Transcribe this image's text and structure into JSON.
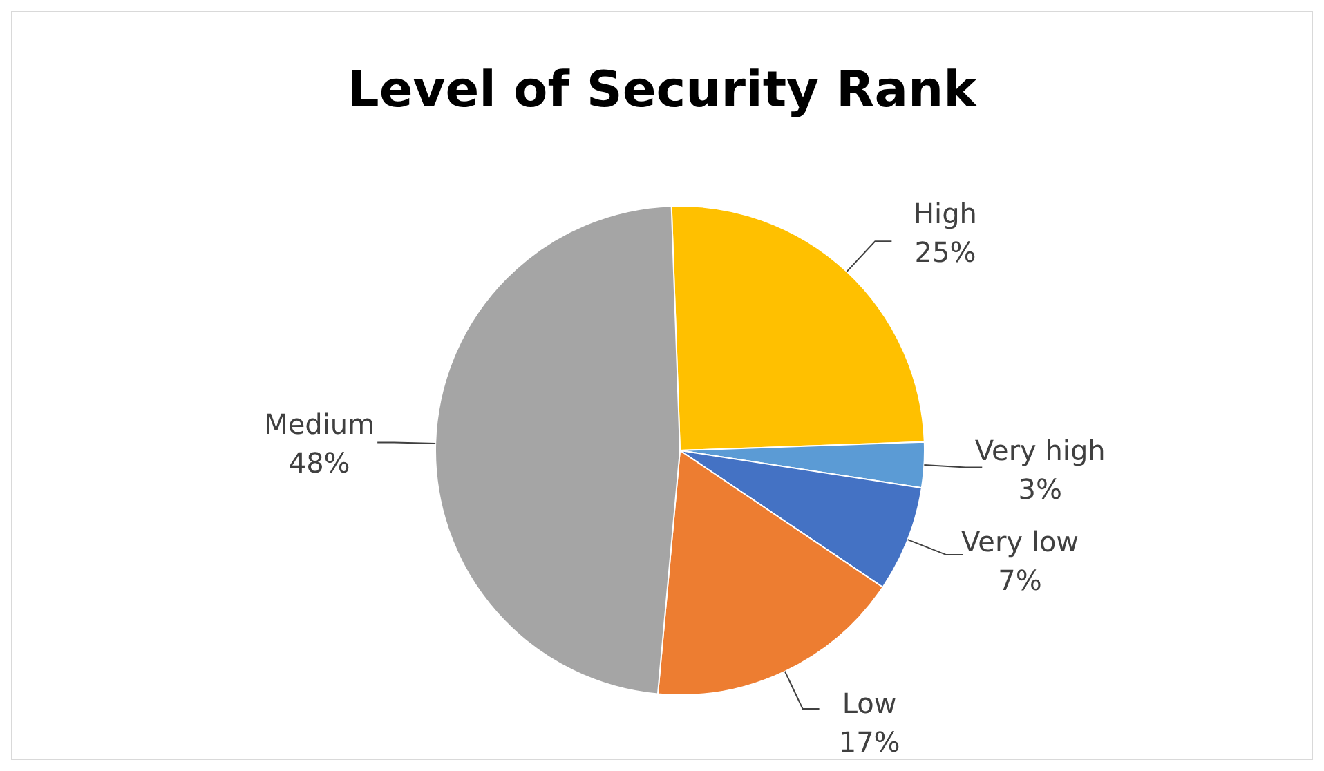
{
  "chart_data": {
    "type": "pie",
    "title": "Level of Security Rank",
    "categories": [
      "High",
      "Very high",
      "Very low",
      "Low",
      "Medium"
    ],
    "values": [
      25,
      3,
      7,
      17,
      48
    ],
    "value_labels": [
      "25%",
      "3%",
      "7%",
      "17%",
      "48%"
    ],
    "colors": [
      "#ffc000",
      "#5b9bd5",
      "#4472c4",
      "#ed7d31",
      "#a5a5a5"
    ],
    "legend": false
  }
}
